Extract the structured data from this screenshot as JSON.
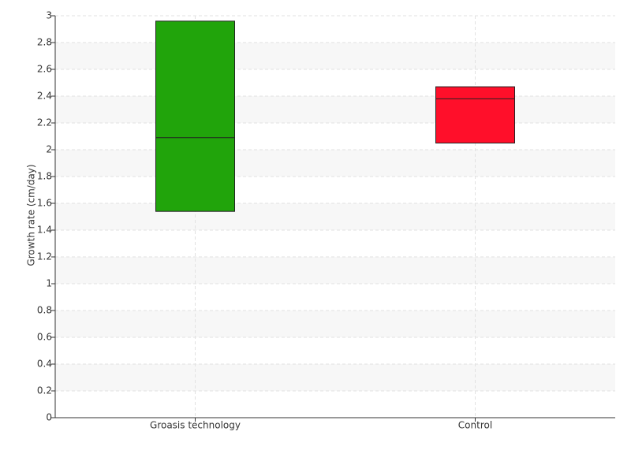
{
  "chart_data": {
    "type": "box",
    "y_label": "Growth rate (cm/day)",
    "categories": [
      "Groasis technology",
      "Control"
    ],
    "low": [
      1.54,
      2.05
    ],
    "median": [
      2.09,
      2.38
    ],
    "high": [
      2.96,
      2.47
    ],
    "colors": [
      "#21a40b",
      "#ff0f2a"
    ],
    "ylim": [
      0,
      3
    ],
    "yticks": [
      0,
      0.2,
      0.4,
      0.6,
      0.8,
      1,
      1.2,
      1.4,
      1.6,
      1.8,
      2,
      2.2,
      2.4,
      2.6,
      2.8,
      3
    ],
    "grid": true
  }
}
